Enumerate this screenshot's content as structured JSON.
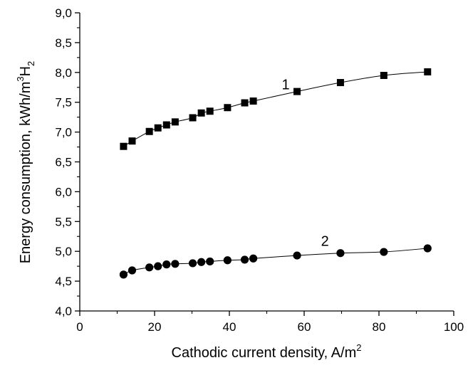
{
  "chart_data": {
    "type": "scatter",
    "xlabel": "Cathodic current density, A/m",
    "xlabel_sup": "2",
    "ylabel_parts": [
      "Energy consumption, kWh/m",
      "3",
      "H",
      "2"
    ],
    "xlim": [
      0,
      100
    ],
    "ylim": [
      4.0,
      9.0
    ],
    "x_ticks": [
      "0",
      "20",
      "40",
      "60",
      "80",
      "100"
    ],
    "y_ticks": [
      "4,0",
      "4,5",
      "5,0",
      "5,5",
      "6,0",
      "6,5",
      "7,0",
      "7,5",
      "8,0",
      "8,5",
      "9,0"
    ],
    "grid": false,
    "series": [
      {
        "label": "1",
        "marker": "square",
        "x": [
          11.7,
          14.0,
          18.6,
          20.9,
          23.2,
          25.5,
          30.2,
          32.5,
          34.8,
          39.5,
          44.1,
          46.4,
          58.1,
          69.7,
          81.3,
          93.0
        ],
        "y": [
          6.76,
          6.85,
          7.01,
          7.07,
          7.12,
          7.17,
          7.24,
          7.32,
          7.35,
          7.41,
          7.49,
          7.52,
          7.68,
          7.83,
          7.95,
          8.01
        ]
      },
      {
        "label": "2",
        "marker": "circle",
        "x": [
          11.7,
          14.0,
          18.6,
          20.9,
          23.2,
          25.5,
          30.2,
          32.5,
          34.8,
          39.5,
          44.1,
          46.4,
          58.1,
          69.7,
          81.3,
          93.0
        ],
        "y": [
          4.61,
          4.68,
          4.73,
          4.75,
          4.78,
          4.79,
          4.8,
          4.82,
          4.83,
          4.85,
          4.86,
          4.88,
          4.93,
          4.97,
          4.99,
          5.05
        ]
      }
    ]
  }
}
